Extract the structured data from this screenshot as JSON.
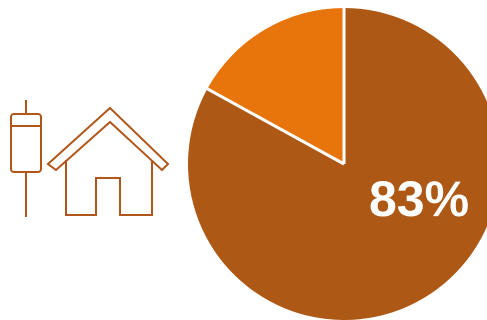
{
  "icons": {
    "insulator": "insulator-icon",
    "house": "house-icon",
    "stroke_color": "#b0561a"
  },
  "chart_data": {
    "type": "pie",
    "slices": [
      {
        "value": 83,
        "color": "#ae5815"
      },
      {
        "value": 17,
        "color": "#e8740c"
      }
    ],
    "data_label": "83%",
    "label_color": "#ffffff",
    "separator_color": "#ffffff",
    "start_angle_deg": 0,
    "direction": "clockwise"
  }
}
